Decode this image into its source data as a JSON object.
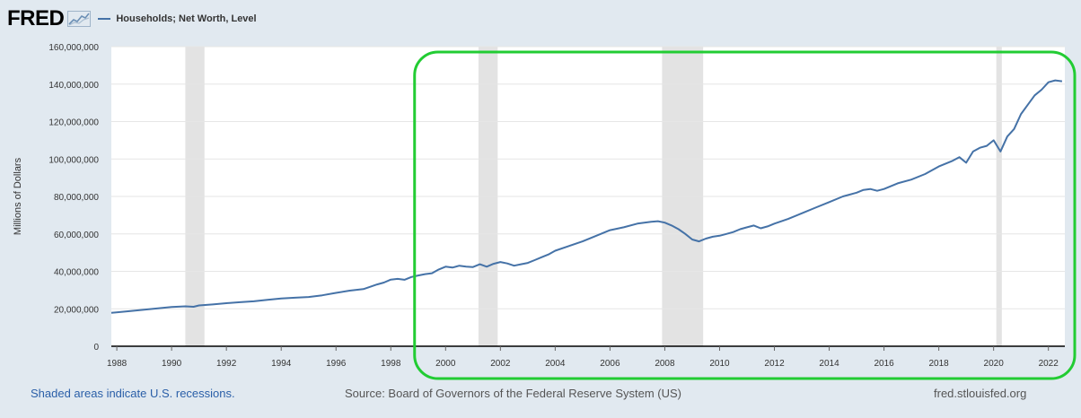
{
  "header": {
    "logo_text": "FRED",
    "series_label": "Households; Net Worth, Level"
  },
  "footer": {
    "recession_note": "Shaded areas indicate U.S. recessions.",
    "source": "Source: Board of Governors of the Federal Reserve System (US)",
    "site": "fred.stlouisfed.org"
  },
  "colors": {
    "line": "#4572a7",
    "recession": "#e3e3e3",
    "highlight": "#22cc33",
    "background": "#e1e9f0"
  },
  "chart_data": {
    "type": "line",
    "title": "Households; Net Worth, Level",
    "xlabel": "",
    "ylabel": "Millions of Dollars",
    "xlim": [
      1987.8,
      2022.6
    ],
    "ylim": [
      0,
      160000000
    ],
    "y_ticks": [
      0,
      20000000,
      40000000,
      60000000,
      80000000,
      100000000,
      120000000,
      140000000,
      160000000
    ],
    "y_tick_labels": [
      "0",
      "20,000,000",
      "40,000,000",
      "60,000,000",
      "80,000,000",
      "100,000,000",
      "120,000,000",
      "140,000,000",
      "160,000,000"
    ],
    "x_ticks": [
      1988,
      1990,
      1992,
      1994,
      1996,
      1998,
      2000,
      2002,
      2004,
      2006,
      2008,
      2010,
      2012,
      2014,
      2016,
      2018,
      2020,
      2022
    ],
    "x_tick_labels": [
      "1988",
      "1990",
      "1992",
      "1994",
      "1996",
      "1998",
      "2000",
      "2002",
      "2004",
      "2006",
      "2008",
      "2010",
      "2012",
      "2014",
      "2016",
      "2018",
      "2020",
      "2022"
    ],
    "recessions": [
      [
        1990.5,
        1991.2
      ],
      [
        2001.2,
        2001.9
      ],
      [
        2007.9,
        2009.4
      ],
      [
        2020.1,
        2020.3
      ]
    ],
    "highlight_range": [
      1998.9,
      2022.6
    ],
    "series": [
      {
        "name": "Households; Net Worth, Level",
        "x": [
          1987.8,
          1988.5,
          1989.0,
          1989.5,
          1990.0,
          1990.5,
          1990.8,
          1991.0,
          1991.5,
          1992.0,
          1992.5,
          1993.0,
          1993.5,
          1994.0,
          1994.5,
          1995.0,
          1995.5,
          1996.0,
          1996.5,
          1997.0,
          1997.5,
          1997.75,
          1998.0,
          1998.25,
          1998.5,
          1998.75,
          1999.0,
          1999.25,
          1999.5,
          1999.75,
          2000.0,
          2000.25,
          2000.5,
          2000.75,
          2001.0,
          2001.25,
          2001.5,
          2001.75,
          2002.0,
          2002.25,
          2002.5,
          2002.75,
          2003.0,
          2003.25,
          2003.5,
          2003.75,
          2004.0,
          2004.5,
          2005.0,
          2005.5,
          2006.0,
          2006.5,
          2007.0,
          2007.5,
          2007.75,
          2008.0,
          2008.25,
          2008.5,
          2008.75,
          2009.0,
          2009.25,
          2009.5,
          2009.75,
          2010.0,
          2010.25,
          2010.5,
          2010.75,
          2011.0,
          2011.25,
          2011.5,
          2011.75,
          2012.0,
          2012.5,
          2013.0,
          2013.5,
          2014.0,
          2014.5,
          2015.0,
          2015.25,
          2015.5,
          2015.75,
          2016.0,
          2016.5,
          2017.0,
          2017.5,
          2018.0,
          2018.5,
          2018.75,
          2019.0,
          2019.25,
          2019.5,
          2019.75,
          2020.0,
          2020.25,
          2020.5,
          2020.75,
          2021.0,
          2021.25,
          2021.5,
          2021.75,
          2022.0,
          2022.25,
          2022.5
        ],
        "values": [
          17800000,
          18800000,
          19500000,
          20200000,
          21000000,
          21300000,
          21100000,
          21800000,
          22300000,
          23000000,
          23500000,
          24000000,
          24800000,
          25500000,
          25900000,
          26300000,
          27200000,
          28500000,
          29700000,
          30500000,
          33000000,
          34000000,
          35600000,
          36000000,
          35500000,
          37000000,
          37800000,
          38500000,
          39000000,
          41000000,
          42500000,
          42000000,
          43000000,
          42500000,
          42300000,
          43800000,
          42500000,
          44000000,
          45000000,
          44200000,
          43000000,
          43800000,
          44500000,
          46000000,
          47500000,
          49000000,
          51000000,
          53500000,
          56000000,
          59000000,
          62000000,
          63500000,
          65500000,
          66500000,
          66800000,
          66000000,
          64500000,
          62500000,
          60000000,
          57000000,
          56000000,
          57500000,
          58500000,
          59000000,
          60000000,
          61000000,
          62500000,
          63500000,
          64500000,
          63000000,
          64000000,
          65500000,
          68000000,
          71000000,
          74000000,
          77000000,
          80000000,
          82000000,
          83500000,
          84000000,
          83000000,
          84000000,
          87000000,
          89000000,
          92000000,
          96000000,
          99000000,
          101000000,
          98000000,
          104000000,
          106000000,
          107000000,
          110000000,
          104000000,
          112000000,
          116000000,
          124000000,
          129000000,
          134000000,
          137000000,
          141000000,
          142000000,
          141500000
        ]
      }
    ]
  }
}
